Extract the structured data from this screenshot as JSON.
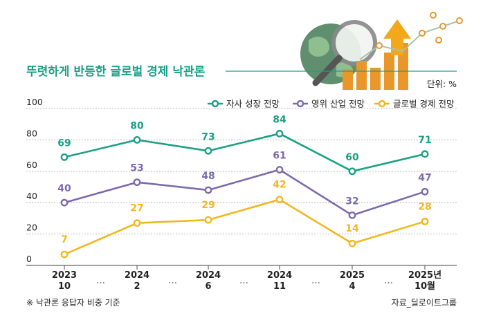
{
  "title": "뚜렷하게 반등한 글로벌 경제 낙관론",
  "unit": "단위: %",
  "footnote": "※ 낙관론 응답자 비중 기준",
  "source": "자료_딜로이트그룹",
  "colors": {
    "title": "#1aa085",
    "series1": "#1aa085",
    "series2": "#7b6aad",
    "series3": "#f0b81c",
    "grid": "#b8b8b8",
    "axis": "#666666"
  },
  "chart_data": {
    "type": "line",
    "categories": [
      {
        "year": "2023",
        "month": "10"
      },
      {
        "year": "2024",
        "month": "2"
      },
      {
        "year": "2024",
        "month": "6"
      },
      {
        "year": "2024",
        "month": "11"
      },
      {
        "year": "2025",
        "month": "4"
      },
      {
        "year": "2025년",
        "month": "10월"
      }
    ],
    "ylim": [
      0,
      100
    ],
    "yticks": [
      "0",
      "20",
      "40",
      "60",
      "80",
      "100"
    ],
    "separator": "…",
    "grid": true,
    "legend": "top-right",
    "series": [
      {
        "name": "자사 성장 전망",
        "values": [
          69,
          80,
          73,
          84,
          60,
          71
        ],
        "color": "#1aa085"
      },
      {
        "name": "영위 산업 전망",
        "values": [
          40,
          53,
          48,
          61,
          32,
          47
        ],
        "color": "#7b6aad"
      },
      {
        "name": "글로벌 경제 전망",
        "values": [
          7,
          27,
          29,
          42,
          14,
          28
        ],
        "color": "#f0b81c"
      }
    ]
  }
}
